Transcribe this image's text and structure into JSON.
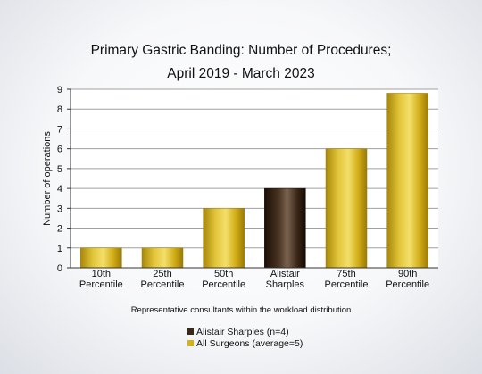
{
  "chart_data": {
    "type": "bar",
    "title_line1": "Primary Gastric Banding: Number of Procedures;",
    "title_line2": "April 2019 - March 2023",
    "xlabel": "Representative consultants within the workload distribution",
    "ylabel": "Number of operations",
    "ylim": [
      0,
      9
    ],
    "yticks": [
      0,
      1,
      2,
      3,
      4,
      5,
      6,
      7,
      8,
      9
    ],
    "grid": true,
    "categories": [
      [
        "10th",
        "Percentile"
      ],
      [
        "25th",
        "Percentile"
      ],
      [
        "50th",
        "Percentile"
      ],
      [
        "Alistair",
        "Sharples"
      ],
      [
        "75th",
        "Percentile"
      ],
      [
        "90th",
        "Percentile"
      ]
    ],
    "values": [
      1,
      1,
      3,
      4,
      6,
      8.8
    ],
    "highlight_index": 3,
    "legend": [
      {
        "label": "Alistair Sharples (n=4)",
        "color": "#3a2818"
      },
      {
        "label": "All Surgeons (average=5)",
        "color": "#d4b21a"
      }
    ],
    "legend_position": "bottom-center"
  }
}
